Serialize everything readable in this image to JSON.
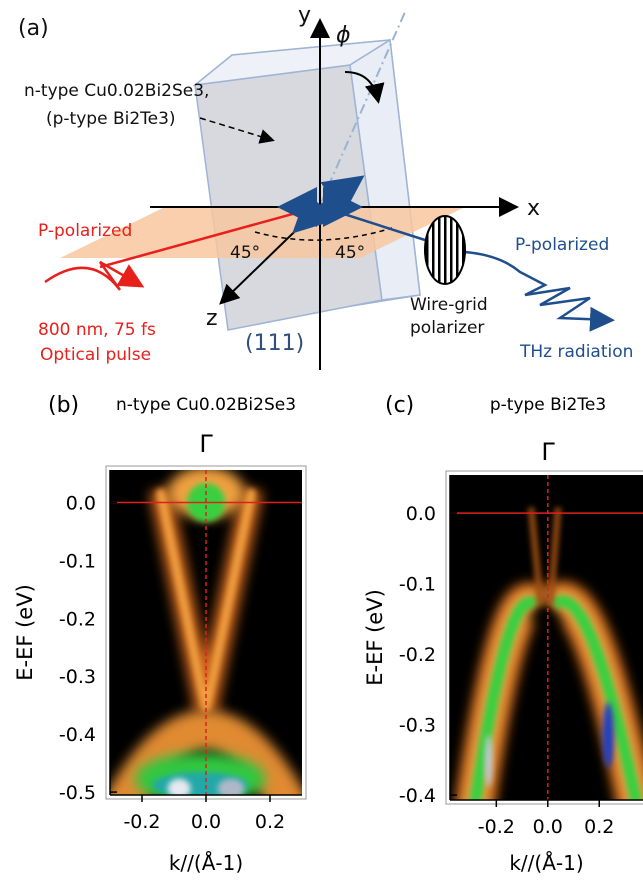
{
  "panel_a": {
    "label": "(a)",
    "axis_x": "x",
    "axis_y": "y",
    "axis_z": "z",
    "angle": "ϕ",
    "sample": [
      "n-type Cu0.02Bi2Se3,",
      "(p-type Bi2Te3)"
    ],
    "incident": {
      "polarization": "P-polarized",
      "pulse": [
        "800 nm, 75 fs",
        "Optical pulse"
      ]
    },
    "angles": [
      "45°",
      "45°"
    ],
    "emitted": {
      "polarization": "P-polarized",
      "name": "THz radiation"
    },
    "polarizer": [
      "Wire-grid",
      "polarizer"
    ],
    "surface": "(111)"
  },
  "panels": [
    {
      "label": "(b)",
      "title": "n-type Cu0.02Bi2Se3",
      "point": "Γ",
      "ylabel": "E-EF (eV)",
      "xlabel": "k//(Å-1)",
      "xlim": [
        -0.3,
        0.3
      ],
      "ylim": [
        -0.505,
        0.056
      ],
      "xticks": [
        -0.2,
        {
          "value": 0,
          "label": "0.0"
        },
        0.2
      ],
      "yticks": [
        {
          "value": 0,
          "label": "0.0"
        },
        -0.1,
        -0.2,
        -0.3,
        -0.4,
        -0.5
      ]
    },
    {
      "label": "(c)",
      "title": "p-type Bi2Te3",
      "point": "Γ",
      "ylabel": "E-EF (eV)",
      "xlabel": "k//(Å-1)",
      "xlim": [
        -0.38,
        0.37
      ],
      "ylim": [
        -0.407,
        0.054
      ],
      "xticks": [
        -0.2,
        {
          "value": 0,
          "label": "0.0"
        },
        0.2
      ],
      "yticks": [
        {
          "value": 0,
          "label": "0.0"
        },
        -0.1,
        -0.2,
        -0.3,
        -0.4
      ]
    }
  ]
}
